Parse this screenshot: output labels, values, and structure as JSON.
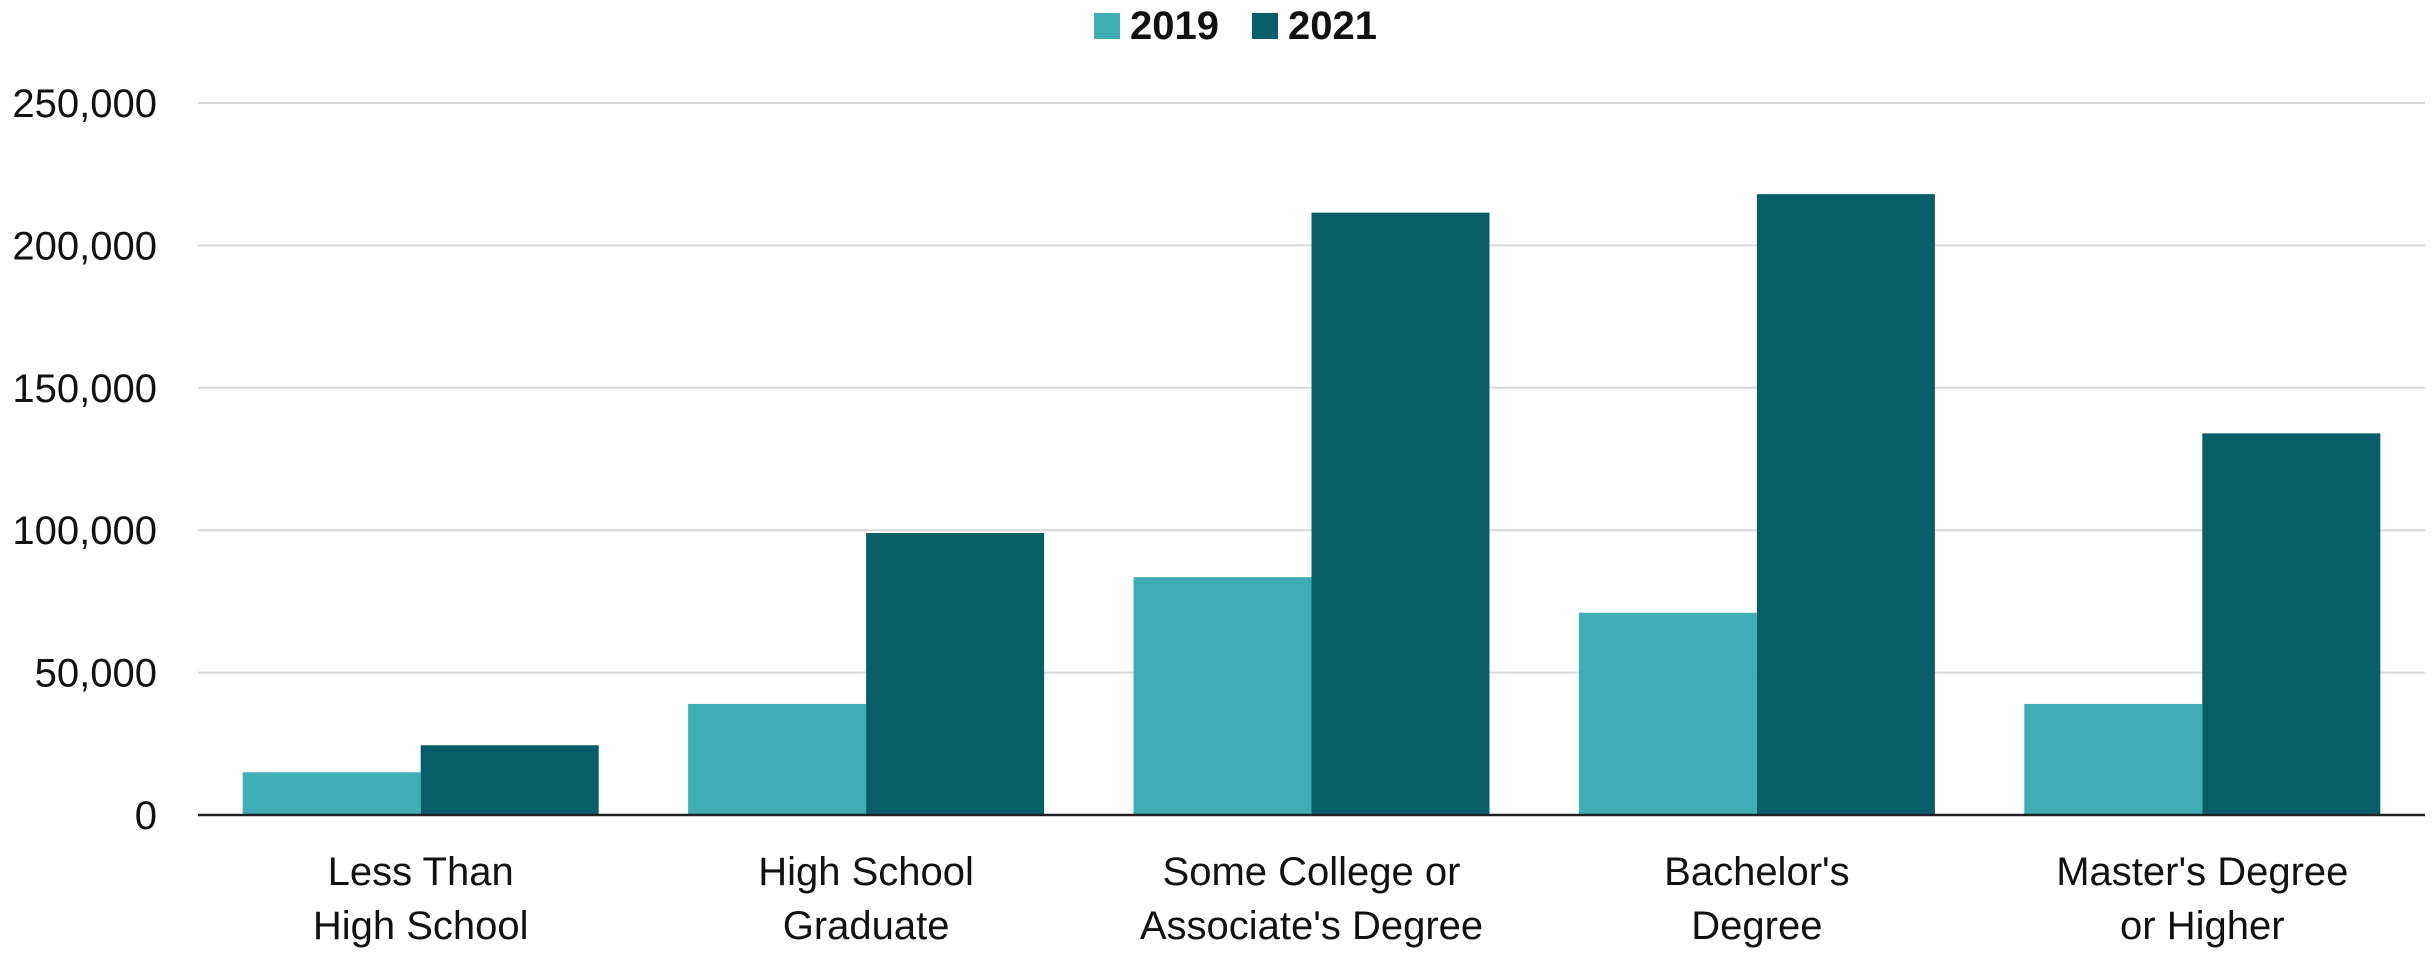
{
  "chart_data": {
    "type": "bar",
    "title": "",
    "xlabel": "",
    "ylabel": "",
    "categories": [
      [
        "Less Than",
        "High School"
      ],
      [
        "High School",
        "Graduate"
      ],
      [
        "Some College or",
        "Associate's Degree"
      ],
      [
        "Bachelor's",
        "Degree"
      ],
      [
        "Master's Degree",
        "or Higher"
      ]
    ],
    "series": [
      {
        "name": "2019",
        "color": "#3eadb5",
        "values": [
          15000,
          39000,
          83500,
          71000,
          39000
        ]
      },
      {
        "name": "2021",
        "color": "#075e69",
        "values": [
          24500,
          99000,
          211500,
          218000,
          134000
        ]
      }
    ],
    "ylim": [
      0,
      250000
    ],
    "yticks": [
      0,
      50000,
      100000,
      150000,
      200000,
      250000
    ],
    "ytick_labels": [
      "0",
      "50,000",
      "100,000",
      "150,000",
      "200,000",
      "250,000"
    ],
    "grid": true,
    "legend_position": "top-center"
  }
}
